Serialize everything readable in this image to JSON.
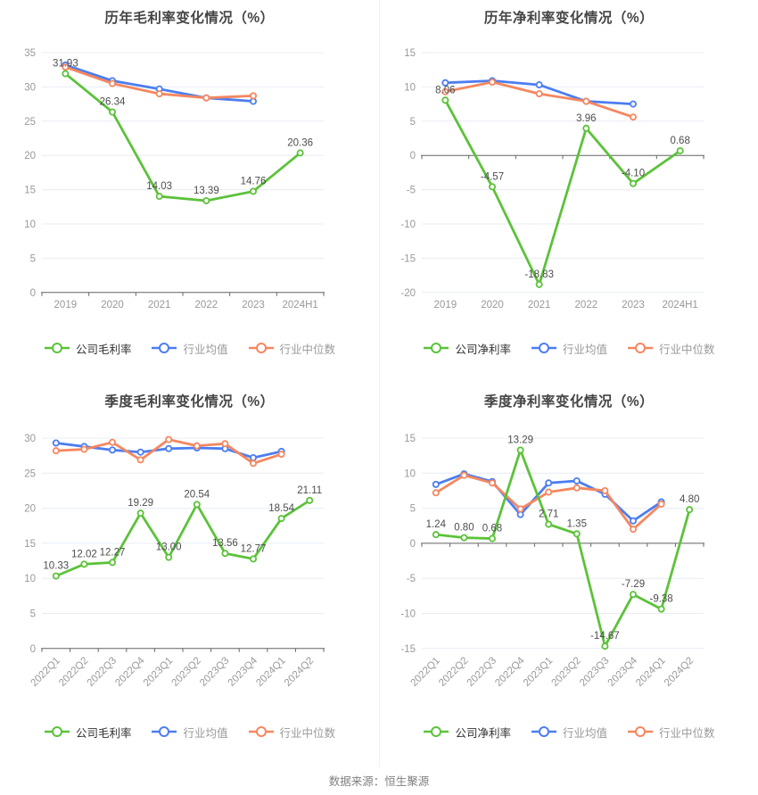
{
  "page": {
    "footer": "数据来源：恒生聚源",
    "background": "#ffffff"
  },
  "colors": {
    "company_line": "#5cc23a",
    "industry_avg_line": "#4c7df2",
    "industry_median_line": "#f5875f",
    "grid_line": "#e8ecf4",
    "axis_line": "#666666",
    "tick_label": "#999999",
    "data_label": "#4d4d4d",
    "title_text": "#454545",
    "legend_active_text": "#333333",
    "legend_muted_text": "#999999"
  },
  "chart_data": [
    {
      "type": "line",
      "title": "历年毛利率变化情况（%）",
      "categories": [
        "2019",
        "2020",
        "2021",
        "2022",
        "2023",
        "2024H1"
      ],
      "ylim": [
        0,
        35
      ],
      "ystep": 5,
      "x_label_rotate": 0,
      "grid": true,
      "legend_position": "bottom",
      "series": [
        {
          "name": "公司毛利率",
          "key": "company",
          "color": "#5cc23a",
          "show_labels": true,
          "values": [
            31.93,
            26.34,
            14.03,
            13.39,
            14.76,
            20.36
          ],
          "labels": [
            "31.93",
            "26.34",
            "14.03",
            "13.39",
            "14.76",
            "20.36"
          ]
        },
        {
          "name": "行业均值",
          "key": "industry-avg",
          "color": "#4c7df2",
          "show_labels": false,
          "values": [
            33.2,
            30.9,
            29.7,
            28.4,
            27.9
          ]
        },
        {
          "name": "行业中位数",
          "key": "industry-median",
          "color": "#f5875f",
          "show_labels": false,
          "values": [
            32.9,
            30.5,
            29.0,
            28.4,
            28.7
          ]
        }
      ]
    },
    {
      "type": "line",
      "title": "历年净利率变化情况（%）",
      "categories": [
        "2019",
        "2020",
        "2021",
        "2022",
        "2023",
        "2024H1"
      ],
      "ylim": [
        -20,
        15
      ],
      "ystep": 5,
      "x_label_rotate": 0,
      "grid": true,
      "legend_position": "bottom",
      "series": [
        {
          "name": "公司净利率",
          "key": "company",
          "color": "#5cc23a",
          "show_labels": true,
          "values": [
            8.06,
            -4.57,
            -18.83,
            3.96,
            -4.1,
            0.68
          ],
          "labels": [
            "8.06",
            "-4.57",
            "-18.83",
            "3.96",
            "-4.10",
            "0.68"
          ]
        },
        {
          "name": "行业均值",
          "key": "industry-avg",
          "color": "#4c7df2",
          "show_labels": false,
          "values": [
            10.6,
            10.9,
            10.3,
            7.9,
            7.5
          ]
        },
        {
          "name": "行业中位数",
          "key": "industry-median",
          "color": "#f5875f",
          "show_labels": false,
          "values": [
            9.3,
            10.7,
            9.0,
            7.9,
            5.6
          ]
        }
      ]
    },
    {
      "type": "line",
      "title": "季度毛利率变化情况（%）",
      "categories": [
        "2022Q1",
        "2022Q2",
        "2022Q3",
        "2022Q4",
        "2023Q1",
        "2023Q2",
        "2023Q3",
        "2023Q4",
        "2024Q1",
        "2024Q2"
      ],
      "ylim": [
        0,
        30
      ],
      "ystep": 5,
      "x_label_rotate": 45,
      "grid": true,
      "legend_position": "bottom",
      "series": [
        {
          "name": "公司毛利率",
          "key": "company",
          "color": "#5cc23a",
          "show_labels": true,
          "values": [
            10.33,
            12.02,
            12.27,
            19.29,
            13.0,
            20.54,
            13.56,
            12.77,
            18.54,
            21.11
          ],
          "labels": [
            "10.33",
            "12.02",
            "12.27",
            "19.29",
            "13.00",
            "20.54",
            "13.56",
            "12.77",
            "18.54",
            "21.11"
          ]
        },
        {
          "name": "行业均值",
          "key": "industry-avg",
          "color": "#4c7df2",
          "show_labels": false,
          "values": [
            29.3,
            28.8,
            28.3,
            28.0,
            28.5,
            28.6,
            28.5,
            27.2,
            28.1
          ]
        },
        {
          "name": "行业中位数",
          "key": "industry-median",
          "color": "#f5875f",
          "show_labels": false,
          "values": [
            28.2,
            28.4,
            29.4,
            26.9,
            29.8,
            28.9,
            29.2,
            26.4,
            27.7
          ]
        }
      ]
    },
    {
      "type": "line",
      "title": "季度净利率变化情况（%）",
      "categories": [
        "2022Q1",
        "2022Q2",
        "2022Q3",
        "2022Q4",
        "2023Q1",
        "2023Q2",
        "2023Q3",
        "2023Q4",
        "2024Q1",
        "2024Q2"
      ],
      "ylim": [
        -15,
        15
      ],
      "ystep": 5,
      "x_label_rotate": 45,
      "grid": true,
      "legend_position": "bottom",
      "series": [
        {
          "name": "公司净利率",
          "key": "company",
          "color": "#5cc23a",
          "show_labels": true,
          "values": [
            1.24,
            0.8,
            0.68,
            13.29,
            2.71,
            1.35,
            -14.67,
            -7.29,
            -9.38,
            4.8
          ],
          "labels": [
            "1.24",
            "0.80",
            "0.68",
            "13.29",
            "2.71",
            "1.35",
            "-14.67",
            "-7.29",
            "-9.38",
            "4.80"
          ]
        },
        {
          "name": "行业均值",
          "key": "industry-avg",
          "color": "#4c7df2",
          "show_labels": false,
          "values": [
            8.4,
            9.9,
            8.8,
            4.1,
            8.6,
            8.9,
            7.0,
            3.2,
            5.9
          ]
        },
        {
          "name": "行业中位数",
          "key": "industry-median",
          "color": "#f5875f",
          "show_labels": false,
          "values": [
            7.2,
            9.7,
            8.6,
            4.9,
            7.3,
            7.9,
            7.5,
            2.0,
            5.6
          ]
        }
      ]
    }
  ]
}
